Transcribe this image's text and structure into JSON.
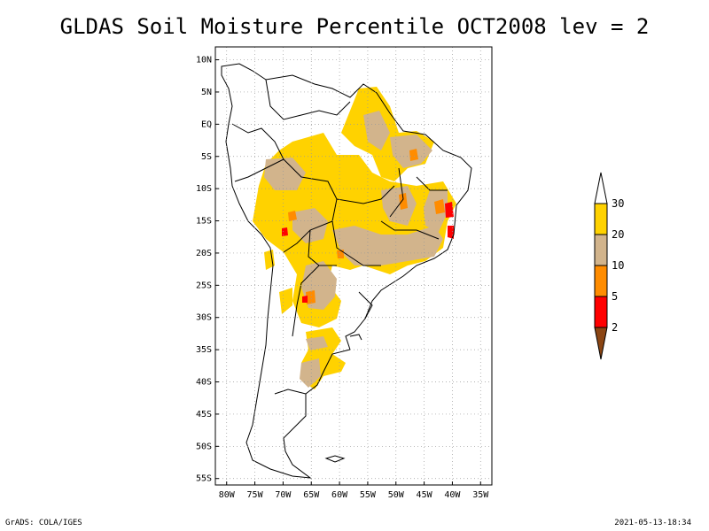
{
  "title": "GLDAS Soil Moisture Percentile OCT2008 lev = 2",
  "footer": {
    "left": "GrADS: COLA/IGES",
    "right": "2021-05-13-18:34"
  },
  "axes": {
    "lat_labels": [
      "10N",
      "5N",
      "EQ",
      "5S",
      "10S",
      "15S",
      "20S",
      "25S",
      "30S",
      "35S",
      "40S",
      "45S",
      "50S",
      "55S"
    ],
    "lat_values": [
      10,
      5,
      0,
      -5,
      -10,
      -15,
      -20,
      -25,
      -30,
      -35,
      -40,
      -45,
      -50,
      -55
    ],
    "lon_labels": [
      "80W",
      "75W",
      "70W",
      "65W",
      "60W",
      "55W",
      "50W",
      "45W",
      "40W",
      "35W"
    ],
    "lon_values": [
      -80,
      -75,
      -70,
      -65,
      -60,
      -55,
      -50,
      -45,
      -40,
      -35
    ],
    "lon_range": [
      -82,
      -33
    ],
    "lat_range": [
      12,
      -56
    ],
    "grid": "dotted"
  },
  "colorbar": {
    "labels": [
      "30",
      "20",
      "10",
      "5",
      "2"
    ],
    "colors": {
      "above": "#ffffff",
      "c30": "#ffd200",
      "c20": "#d2b48c",
      "c10": "#ff8c00",
      "c5": "#ff0000",
      "c2": "#8b4513"
    }
  }
}
